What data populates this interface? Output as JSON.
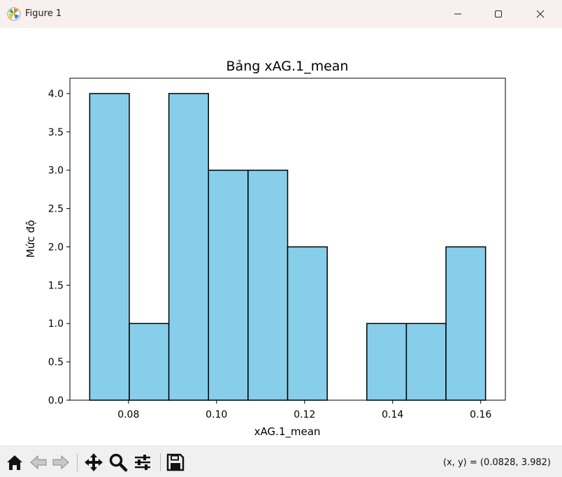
{
  "window": {
    "title": "Figure 1",
    "controls": [
      "minimize-icon",
      "maximize-icon",
      "close-icon"
    ]
  },
  "toolbar": {
    "buttons": [
      "home-icon",
      "back-arrow-icon",
      "forward-arrow-icon",
      "pan-move-icon",
      "zoom-magnifier-icon",
      "configure-sliders-icon",
      "save-floppy-icon"
    ],
    "coords": "(x, y) = (0.0828, 3.982)"
  },
  "chart_data": {
    "type": "bar",
    "title": "Bảng xAG.1_mean",
    "xlabel": "xAG.1_mean",
    "ylabel": "Mức độ",
    "bin_edges": [
      0.0712,
      0.08019,
      0.08918,
      0.09817,
      0.10716,
      0.11615,
      0.12514,
      0.13413,
      0.14312,
      0.15211,
      0.1611
    ],
    "values": [
      4,
      1,
      4,
      3,
      3,
      2,
      0,
      1,
      1,
      2
    ],
    "xlim": [
      0.0667,
      0.1656
    ],
    "ylim": [
      0,
      4.2
    ],
    "xticks": [
      "0.08",
      "0.10",
      "0.12",
      "0.14",
      "0.16"
    ],
    "yticks": [
      "0.0",
      "0.5",
      "1.0",
      "1.5",
      "2.0",
      "2.5",
      "3.0",
      "3.5",
      "4.0"
    ],
    "grid": false,
    "bar_color": "#87ceeb",
    "edge_color": "#000000"
  }
}
